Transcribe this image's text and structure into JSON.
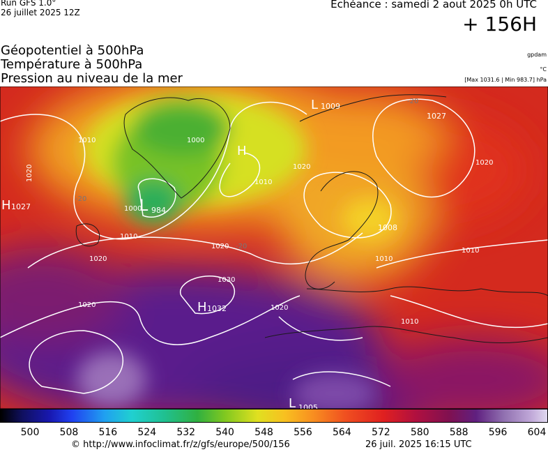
{
  "header": {
    "run": "Run GFS 1.0°",
    "run_date": "26 juillet 2025 12Z",
    "valid": "Echéance : samedi 2 aout 2025 0h UTC",
    "lead": "+ 156H"
  },
  "titles": [
    "Géopotentiel à 500hPa",
    "Température à 500hPa",
    "Pression au niveau de la mer"
  ],
  "units": {
    "geopotential": "gpdam",
    "temperature": "°C",
    "pressure": "[Max 1031.6 | Min 983.7] hPa"
  },
  "centers": [
    {
      "letter": "L",
      "value": "984"
    },
    {
      "letter": "H",
      "value": "1032"
    },
    {
      "letter": "L",
      "value": "1009"
    },
    {
      "letter": "H",
      "value": "1027"
    },
    {
      "letter": "L",
      "value": "1005"
    },
    {
      "letter": "H"
    }
  ],
  "center_labels": [
    "1027",
    "1008"
  ],
  "isobar_labels": [
    "1010",
    "1020",
    "1000",
    "1020",
    "1020",
    "1010",
    "1020",
    "1030",
    "1020",
    "1020",
    "1010",
    "1010",
    "1000",
    "1010",
    "1020",
    "1010"
  ],
  "temperature_labels": [
    "-20",
    "-20",
    "-20"
  ],
  "colorbar": {
    "ticks": [
      500,
      508,
      516,
      524,
      532,
      540,
      548,
      556,
      564,
      572,
      580,
      588,
      596,
      604
    ]
  },
  "footer": {
    "source": "© http://www.infoclimat.fr/z/gfs/europe/500/156",
    "generated": "26 juil. 2025 16:15 UTC"
  }
}
